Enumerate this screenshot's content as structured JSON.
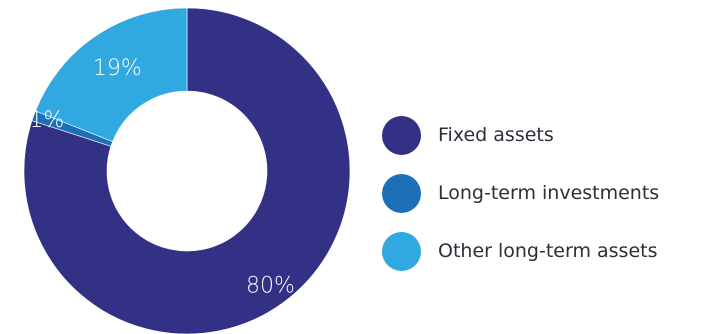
{
  "chart_data": {
    "type": "pie",
    "categories": [
      "Fixed assets",
      "Long-term investments",
      "Other long-term assets"
    ],
    "values": [
      80,
      1,
      19
    ],
    "labels": [
      "80%",
      "1%",
      "19%"
    ],
    "colors": [
      "#333185",
      "#1b70b8",
      "#30a8e0"
    ],
    "donut": true,
    "legend_position": "right"
  },
  "legend": {
    "items": [
      {
        "label": "Fixed assets",
        "color": "#333185"
      },
      {
        "label": "Long-term investments",
        "color": "#1b70b8"
      },
      {
        "label": "Other long-term assets",
        "color": "#30a8e0"
      }
    ]
  }
}
